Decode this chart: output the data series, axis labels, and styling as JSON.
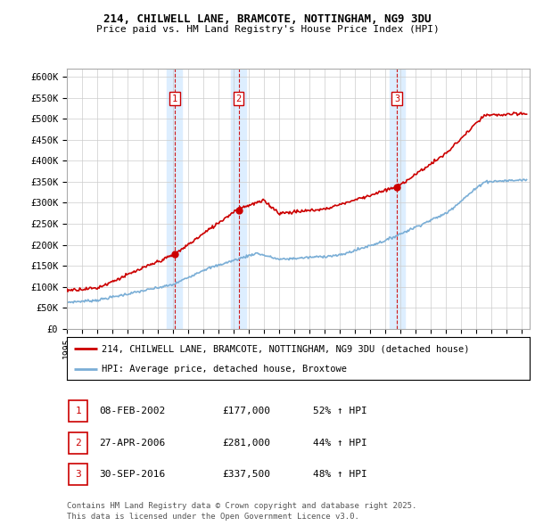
{
  "title1": "214, CHILWELL LANE, BRAMCOTE, NOTTINGHAM, NG9 3DU",
  "title2": "Price paid vs. HM Land Registry's House Price Index (HPI)",
  "ylabel_ticks": [
    "£0",
    "£50K",
    "£100K",
    "£150K",
    "£200K",
    "£250K",
    "£300K",
    "£350K",
    "£400K",
    "£450K",
    "£500K",
    "£550K",
    "£600K"
  ],
  "ytick_vals": [
    0,
    50000,
    100000,
    150000,
    200000,
    250000,
    300000,
    350000,
    400000,
    450000,
    500000,
    550000,
    600000
  ],
  "ylim": [
    0,
    620000
  ],
  "xlim_start": 1995.0,
  "xlim_end": 2025.5,
  "sale_dates": [
    2002.1,
    2006.32,
    2016.75
  ],
  "sale_prices": [
    177000,
    281000,
    337500
  ],
  "sale_labels": [
    "1",
    "2",
    "3"
  ],
  "legend_line1": "214, CHILWELL LANE, BRAMCOTE, NOTTINGHAM, NG9 3DU (detached house)",
  "legend_line2": "HPI: Average price, detached house, Broxtowe",
  "table_rows": [
    [
      "1",
      "08-FEB-2002",
      "£177,000",
      "52% ↑ HPI"
    ],
    [
      "2",
      "27-APR-2006",
      "£281,000",
      "44% ↑ HPI"
    ],
    [
      "3",
      "30-SEP-2016",
      "£337,500",
      "48% ↑ HPI"
    ]
  ],
  "footnote1": "Contains HM Land Registry data © Crown copyright and database right 2025.",
  "footnote2": "This data is licensed under the Open Government Licence v3.0.",
  "red_color": "#cc0000",
  "blue_color": "#7aaed6",
  "shaded_color": "#ddeeff",
  "background_color": "#ffffff",
  "grid_color": "#cccccc"
}
